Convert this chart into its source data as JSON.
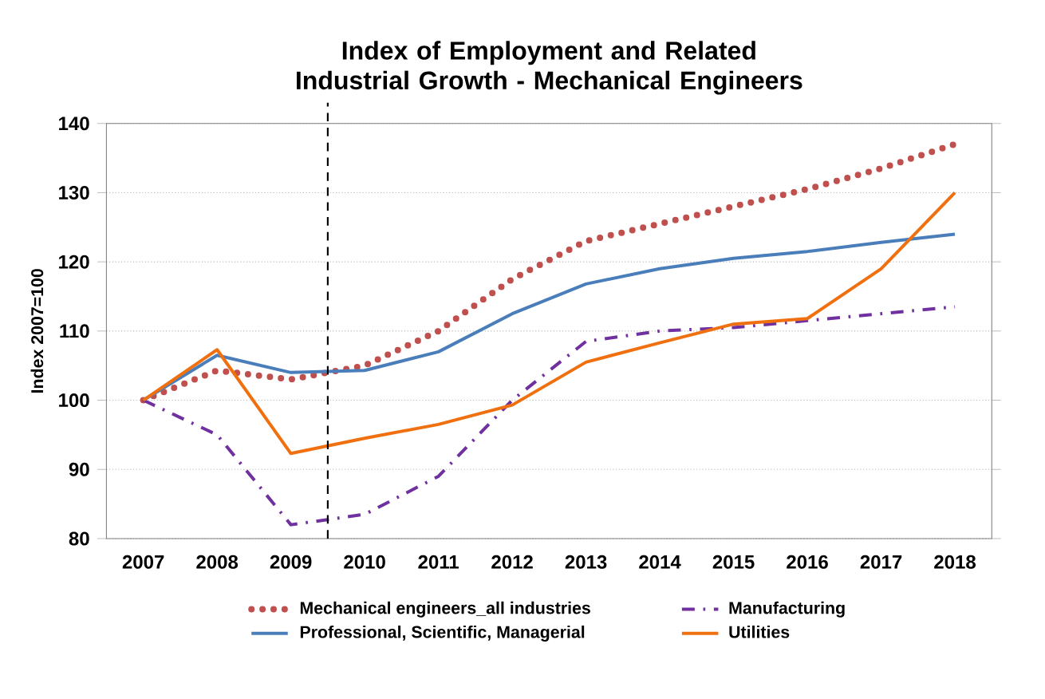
{
  "chart_data": {
    "type": "line",
    "title": "Index of Employment and Related Industrial Growth - Mechanical Engineers",
    "ylabel": "Index 2007=100",
    "x": [
      2007,
      2008,
      2009,
      2010,
      2011,
      2012,
      2013,
      2014,
      2015,
      2016,
      2017,
      2018
    ],
    "xlim": [
      2006.5,
      2018.5
    ],
    "xticks": [
      2007,
      2008,
      2009,
      2010,
      2011,
      2012,
      2013,
      2014,
      2015,
      2016,
      2017,
      2018
    ],
    "ylim": [
      80,
      140
    ],
    "yticks": [
      80,
      90,
      100,
      110,
      120,
      130,
      140
    ],
    "grid": "y",
    "legend": "bottom",
    "marker": "none",
    "series": [
      {
        "name": "Mechanical engineers_all industries",
        "color": "#c0504d",
        "line_style": "dotted",
        "values": [
          100,
          104.3,
          103,
          105,
          110,
          117.5,
          123,
          125.5,
          128,
          130.5,
          133.5,
          137
        ]
      },
      {
        "name": "Manufacturing",
        "color": "#7030a0",
        "line_style": "dashdot",
        "values": [
          100,
          95,
          82,
          83.5,
          89,
          100,
          108.5,
          110,
          110.5,
          111.5,
          112.5,
          113.5
        ]
      },
      {
        "name": "Professional, Scientific, Managerial",
        "color": "#4a7ebb",
        "line_style": "solid",
        "values": [
          100,
          106.5,
          104,
          104.3,
          107,
          112.5,
          116.8,
          119,
          120.5,
          121.5,
          122.8,
          124
        ]
      },
      {
        "name": "Utilities",
        "color": "#f07010",
        "line_style": "solid",
        "values": [
          100,
          107.3,
          92.3,
          94.5,
          96.5,
          99.3,
          105.5,
          108.3,
          111,
          111.8,
          119,
          130
        ]
      }
    ],
    "ref_lines": [
      {
        "axis": "x",
        "value": 2009.5,
        "color": "#000000",
        "line_style": "dashed"
      }
    ]
  }
}
